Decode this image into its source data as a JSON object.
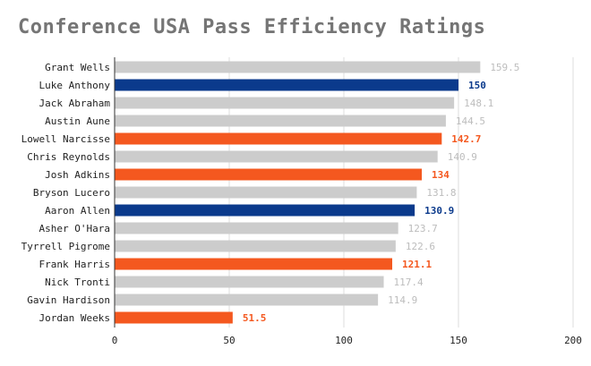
{
  "colors": {
    "grey": "#cccccc",
    "blue": "#0b3a8c",
    "orange": "#f4581f",
    "grey_label": "#bdbdbd",
    "grid": "#dddddd"
  },
  "chart_data": {
    "type": "bar",
    "orientation": "horizontal",
    "title": "Conference USA Pass Efficiency Ratings",
    "xlabel": "",
    "ylabel": "",
    "xlim": [
      0,
      200
    ],
    "xticks": [
      0,
      50,
      100,
      150,
      200
    ],
    "grid": true,
    "categories": [
      "Grant Wells",
      "Luke Anthony",
      "Jack Abraham",
      "Austin Aune",
      "Lowell Narcisse",
      "Chris Reynolds",
      "Josh Adkins",
      "Bryson Lucero",
      "Aaron Allen",
      "Asher O'Hara",
      "Tyrrell Pigrome",
      "Frank Harris",
      "Nick Tronti",
      "Gavin Hardison",
      "Jordan Weeks"
    ],
    "values": [
      159.5,
      150,
      148.1,
      144.5,
      142.7,
      140.9,
      134,
      131.8,
      130.9,
      123.7,
      122.6,
      121.1,
      117.4,
      114.9,
      51.5
    ],
    "bar_colors": [
      "grey",
      "blue",
      "grey",
      "grey",
      "orange",
      "grey",
      "orange",
      "grey",
      "blue",
      "grey",
      "grey",
      "orange",
      "grey",
      "grey",
      "orange"
    ]
  }
}
